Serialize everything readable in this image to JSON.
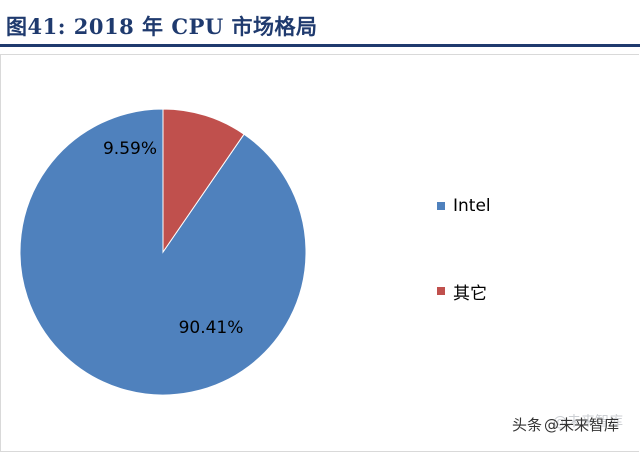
{
  "header": {
    "title": "图41: 2018 年 CPU 市场格局"
  },
  "chart_data": {
    "type": "pie",
    "slices": [
      {
        "label": "Intel",
        "value": 90.41,
        "value_label": "90.41%",
        "color": "#4f81bd"
      },
      {
        "label": "其它",
        "value": 9.59,
        "value_label": "9.59%",
        "color": "#c0504d"
      }
    ],
    "legend": "right"
  },
  "watermark": {
    "prefix": "头条",
    "handle": "@未来智库"
  }
}
